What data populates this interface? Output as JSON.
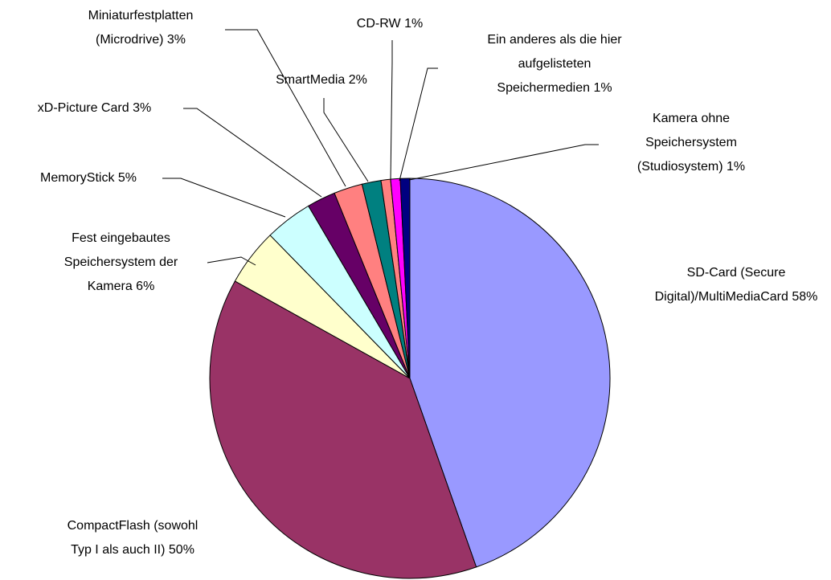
{
  "chart_data": {
    "type": "pie",
    "categories": [
      "SD-Card (Secure Digital)/MultiMediaCard",
      "CompactFlash (sowohl Typ I als auch II)",
      "Fest eingebautes Speichersystem der Kamera",
      "MemoryStick",
      "xD-Picture Card",
      "Miniaturfestplatten (Microdrive)",
      "SmartMedia",
      "CD-RW",
      "Ein anderes als die hier aufgelisteten Speichermedien",
      "Kamera ohne Speichersystem (Studiosystem)"
    ],
    "values": [
      58,
      50,
      6,
      5,
      3,
      3,
      2,
      1,
      1,
      1
    ],
    "value_labels": [
      "58%",
      "50%",
      "6%",
      "5%",
      "3%",
      "3%",
      "2%",
      "1%",
      "1%",
      "1%"
    ],
    "colors": [
      "#9999ff",
      "#993366",
      "#ffffcc",
      "#ccffff",
      "#660066",
      "#ff8080",
      "#008080",
      "#ff8080",
      "#ff00ff",
      "#000080"
    ]
  }
}
